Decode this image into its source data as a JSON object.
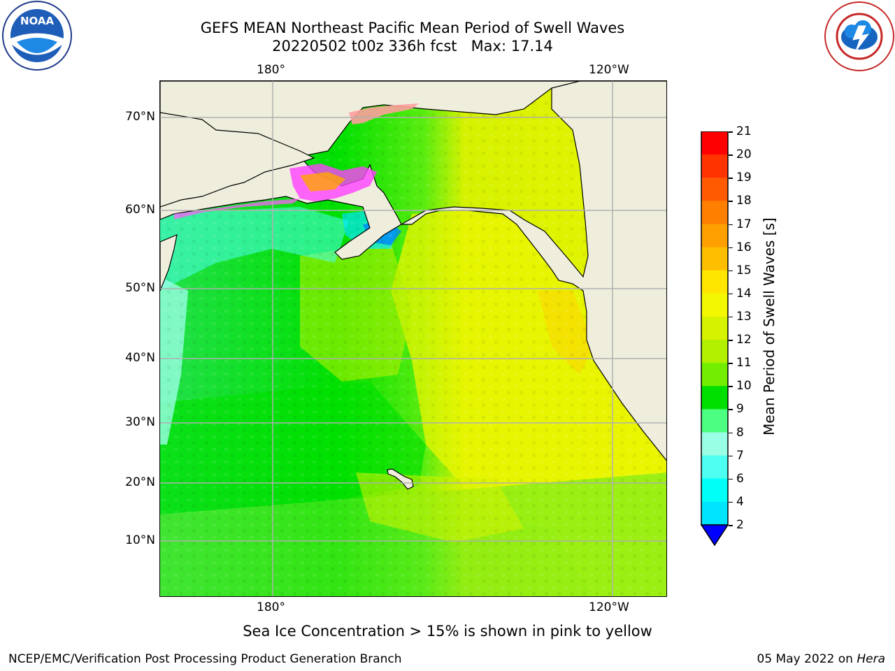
{
  "header": {
    "title_line1": "GEFS MEAN Northeast Pacific Mean Period of Swell Waves",
    "title_line2": "20220502 t00z 336h fcst   Max: 17.14"
  },
  "map": {
    "top_lon_labels": [
      "180°",
      "120°W"
    ],
    "bottom_lon_labels": [
      "180°",
      "120°W"
    ],
    "lat_labels": [
      "70°N",
      "60°N",
      "50°N",
      "40°N",
      "30°N",
      "20°N",
      "10°N"
    ],
    "land_color": "#efeedc",
    "grid_color": "#b0b0b0"
  },
  "colorbar": {
    "label": "Mean Period of Swell Waves [s]",
    "ticks": [
      "21",
      "20",
      "19",
      "18",
      "17",
      "16",
      "15",
      "14",
      "13",
      "12",
      "11",
      "10",
      "9",
      "8",
      "7",
      "6",
      "4",
      "2"
    ],
    "colors_top_to_bottom": [
      "#ff0000",
      "#ff3300",
      "#ff5a00",
      "#ff7f00",
      "#ff9f00",
      "#ffbf00",
      "#ffe600",
      "#f3f700",
      "#d6f200",
      "#b2f000",
      "#73ee00",
      "#00e000",
      "#4dff80",
      "#99ffe5",
      "#4dfff0",
      "#00fff7",
      "#00e5ff",
      "#0080ff"
    ],
    "under_color": "#0000ff"
  },
  "footer": {
    "note": "Sea Ice Concentration > 15% is shown in pink to yellow",
    "credit": "NCEP/EMC/Verification Post Processing Product Generation Branch",
    "date": "05 May 2022 on",
    "host": "Hera"
  },
  "logos": {
    "left_text": "NOAA",
    "right_text": "NATIONAL WEATHER SERVICE"
  }
}
